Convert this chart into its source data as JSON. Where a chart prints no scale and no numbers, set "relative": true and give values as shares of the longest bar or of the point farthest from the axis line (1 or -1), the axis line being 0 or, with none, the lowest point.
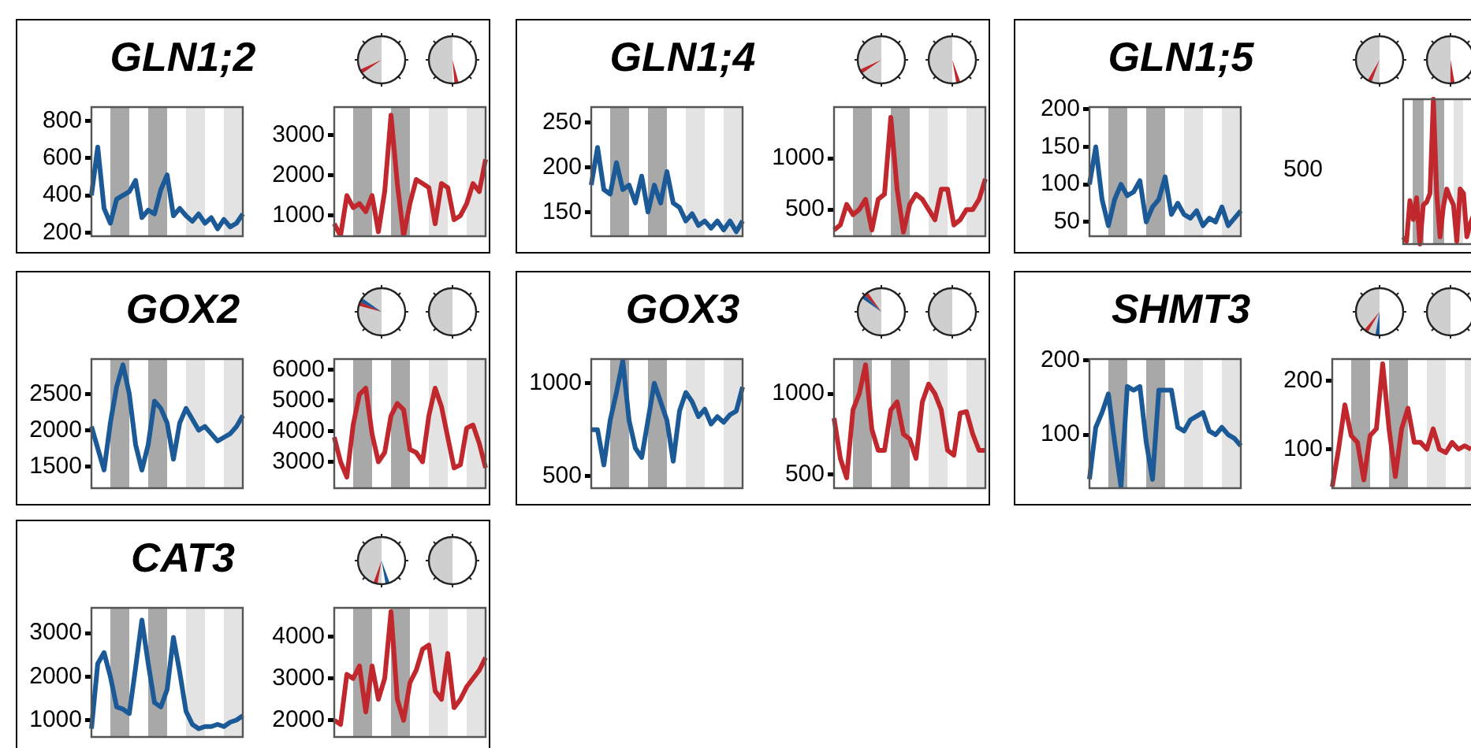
{
  "chart_data": [
    {
      "type": "line",
      "title": "GLN1;2",
      "categories": [
        null,
        null,
        null,
        null,
        null,
        null,
        null,
        null,
        null,
        null,
        null,
        null,
        null,
        null,
        null,
        null,
        null,
        null,
        null,
        null,
        null,
        null,
        null,
        null,
        null
      ],
      "ylim": [
        180,
        875
      ],
      "yticks": [
        200,
        400,
        600,
        800
      ],
      "tick_labels": "y",
      "series": [
        {
          "color": "#1b5a96",
          "values": [
            400,
            660,
            330,
            250,
            380,
            400,
            420,
            480,
            280,
            320,
            300,
            430,
            510,
            290,
            330,
            290,
            260,
            300,
            250,
            280,
            220,
            270,
            230,
            250,
            300
          ]
        }
      ]
    },
    {
      "type": "line",
      "categories": [
        null,
        null,
        null,
        null,
        null,
        null,
        null,
        null,
        null,
        null,
        null,
        null,
        null,
        null,
        null,
        null,
        null,
        null,
        null,
        null,
        null,
        null,
        null,
        null,
        null
      ],
      "ylim": [
        490,
        3700
      ],
      "yticks": [
        1000,
        2000,
        3000
      ],
      "tick_labels": "y",
      "series": [
        {
          "color": "#c0282d",
          "values": [
            800,
            500,
            1500,
            1200,
            1300,
            1100,
            1500,
            600,
            1600,
            3500,
            1800,
            500,
            1300,
            1900,
            1800,
            1700,
            800,
            1800,
            1700,
            900,
            1000,
            1300,
            1800,
            1600,
            2400
          ]
        }
      ]
    },
    {
      "type": "line",
      "title": "GLN1;4",
      "categories": [
        null,
        null,
        null,
        null,
        null,
        null,
        null,
        null,
        null,
        null,
        null,
        null,
        null,
        null,
        null,
        null,
        null,
        null,
        null,
        null,
        null,
        null,
        null,
        null,
        null
      ],
      "ylim": [
        123,
        267
      ],
      "yticks": [
        150,
        200,
        250
      ],
      "tick_labels": "y",
      "series": [
        {
          "color": "#1b5a96",
          "values": [
            180,
            222,
            175,
            170,
            205,
            175,
            180,
            160,
            190,
            150,
            180,
            160,
            195,
            160,
            155,
            140,
            148,
            135,
            140,
            132,
            140,
            130,
            140,
            128,
            140
          ]
        }
      ]
    },
    {
      "type": "line",
      "categories": [
        null,
        null,
        null,
        null,
        null,
        null,
        null,
        null,
        null,
        null,
        null,
        null,
        null,
        null,
        null,
        null,
        null,
        null,
        null,
        null,
        null,
        null,
        null,
        null,
        null
      ],
      "ylim": [
        240,
        1500
      ],
      "yticks": [
        500,
        1000
      ],
      "tick_labels": "y",
      "series": [
        {
          "color": "#c0282d",
          "values": [
            300,
            350,
            550,
            450,
            500,
            600,
            300,
            600,
            650,
            1400,
            700,
            280,
            550,
            650,
            600,
            500,
            400,
            700,
            700,
            350,
            400,
            500,
            500,
            600,
            800
          ]
        }
      ]
    },
    {
      "type": "line",
      "title": "GLN1;5",
      "categories": [
        null,
        null,
        null,
        null,
        null,
        null,
        null,
        null,
        null,
        null,
        null,
        null,
        null,
        null,
        null,
        null,
        null,
        null,
        null,
        null,
        null,
        null,
        null,
        null,
        null
      ],
      "ylim": [
        31,
        203
      ],
      "yticks": [
        50,
        100,
        150,
        200
      ],
      "tick_labels": "y",
      "series": [
        {
          "color": "#1b5a96",
          "values": [
            100,
            150,
            80,
            45,
            80,
            100,
            85,
            90,
            105,
            50,
            70,
            80,
            110,
            60,
            75,
            60,
            55,
            65,
            45,
            55,
            50,
            70,
            45,
            55,
            65
          ]
        }
      ]
    },
    {
      "type": "line",
      "categories": [
        null,
        null,
        null,
        null,
        null,
        null,
        null,
        null,
        null,
        null,
        null,
        null,
        null,
        null,
        null,
        null,
        null,
        null,
        null,
        null,
        null,
        null,
        null,
        null,
        null
      ],
      "relative": true,
      "tick_labels": "y",
      "annotations": [
        "500"
      ],
      "series": [
        {
          "color": "#c0282d",
          "values": [
            0.05,
            0.02,
            0.3,
            0.17,
            0.32,
            0,
            0.27,
            0.29,
            0.35,
            1,
            0.35,
            0.05,
            0.26,
            0.38,
            0.32,
            0.27,
            0.02,
            0.38,
            0.35,
            0.05,
            0.14,
            0.2,
            0.2,
            null,
            null
          ]
        }
      ]
    },
    {
      "type": "line",
      "title": "GOX2",
      "categories": [
        null,
        null,
        null,
        null,
        null,
        null,
        null,
        null,
        null,
        null,
        null,
        null,
        null,
        null,
        null,
        null,
        null,
        null,
        null,
        null,
        null,
        null,
        null,
        null,
        null
      ],
      "ylim": [
        1200,
        2980
      ],
      "yticks": [
        1500,
        2000,
        2500
      ],
      "tick_labels": "y",
      "series": [
        {
          "color": "#1b5a96",
          "values": [
            2050,
            1750,
            1450,
            2100,
            2600,
            2900,
            2500,
            1800,
            1450,
            1800,
            2400,
            2300,
            2100,
            1600,
            2100,
            2300,
            2150,
            2000,
            2050,
            1950,
            1850,
            1900,
            1950,
            2050,
            2200
          ]
        }
      ]
    },
    {
      "type": "line",
      "categories": [
        null,
        null,
        null,
        null,
        null,
        null,
        null,
        null,
        null,
        null,
        null,
        null,
        null,
        null,
        null,
        null,
        null,
        null,
        null,
        null,
        null,
        null,
        null,
        null,
        null
      ],
      "ylim": [
        2140,
        6350
      ],
      "yticks": [
        3000,
        4000,
        5000,
        6000
      ],
      "tick_labels": "y",
      "series": [
        {
          "color": "#c0282d",
          "values": [
            3800,
            3000,
            2500,
            4200,
            5200,
            5400,
            3900,
            3000,
            3300,
            4500,
            4900,
            4700,
            3400,
            3300,
            3000,
            4500,
            5400,
            4800,
            3800,
            2800,
            2900,
            4100,
            4200,
            3600,
            2800
          ]
        }
      ]
    },
    {
      "type": "line",
      "title": "GOX3",
      "categories": [
        null,
        null,
        null,
        null,
        null,
        null,
        null,
        null,
        null,
        null,
        null,
        null,
        null,
        null,
        null,
        null,
        null,
        null,
        null,
        null,
        null,
        null,
        null,
        null,
        null
      ],
      "ylim": [
        435,
        1130
      ],
      "yticks": [
        500,
        1000
      ],
      "tick_labels": "y",
      "series": [
        {
          "color": "#1b5a96",
          "values": [
            750,
            750,
            560,
            800,
            950,
            1120,
            800,
            650,
            600,
            800,
            1000,
            900,
            800,
            580,
            850,
            950,
            900,
            820,
            860,
            780,
            820,
            790,
            830,
            850,
            980
          ]
        }
      ]
    },
    {
      "type": "line",
      "categories": [
        null,
        null,
        null,
        null,
        null,
        null,
        null,
        null,
        null,
        null,
        null,
        null,
        null,
        null,
        null,
        null,
        null,
        null,
        null,
        null,
        null,
        null,
        null,
        null,
        null
      ],
      "ylim": [
        416,
        1215
      ],
      "yticks": [
        500,
        1000
      ],
      "tick_labels": "y",
      "series": [
        {
          "color": "#c0282d",
          "values": [
            850,
            600,
            480,
            900,
            1000,
            1180,
            780,
            650,
            650,
            900,
            950,
            750,
            720,
            600,
            950,
            1060,
            1000,
            900,
            650,
            620,
            880,
            890,
            750,
            650,
            650
          ]
        }
      ]
    },
    {
      "type": "line",
      "title": "SHMT3",
      "categories": [
        null,
        null,
        null,
        null,
        null,
        null,
        null,
        null,
        null,
        null,
        null,
        null,
        null,
        null,
        null,
        null,
        null,
        null,
        null,
        null,
        null,
        null,
        null,
        null,
        null
      ],
      "ylim": [
        28,
        202
      ],
      "yticks": [
        100,
        200
      ],
      "tick_labels": "y",
      "series": [
        {
          "color": "#1b5a96",
          "values": [
            40,
            110,
            130,
            155,
            90,
            30,
            165,
            160,
            165,
            90,
            40,
            160,
            160,
            160,
            110,
            105,
            120,
            125,
            130,
            105,
            100,
            110,
            100,
            95,
            85
          ]
        }
      ]
    },
    {
      "type": "line",
      "categories": [
        null,
        null,
        null,
        null,
        null,
        null,
        null,
        null,
        null,
        null,
        null,
        null,
        null,
        null,
        null,
        null,
        null,
        null,
        null,
        null,
        null,
        null,
        null,
        null,
        null
      ],
      "ylim": [
        43,
        232
      ],
      "yticks": [
        100,
        200
      ],
      "tick_labels": "y",
      "series": [
        {
          "color": "#c0282d",
          "values": [
            45,
            100,
            165,
            120,
            110,
            55,
            120,
            130,
            225,
            130,
            60,
            130,
            160,
            110,
            110,
            100,
            130,
            100,
            95,
            110,
            100,
            105,
            100,
            null,
            null
          ]
        }
      ]
    },
    {
      "type": "line",
      "title": "CAT3",
      "categories": [
        null,
        null,
        null,
        null,
        null,
        null,
        null,
        null,
        null,
        null,
        null,
        null,
        null,
        null,
        null,
        null,
        null,
        null,
        null,
        null,
        null,
        null,
        null,
        null,
        null
      ],
      "ylim": [
        610,
        3580
      ],
      "yticks": [
        1000,
        2000,
        3000
      ],
      "tick_labels": "y",
      "series": [
        {
          "color": "#1b5a96",
          "values": [
            800,
            2300,
            2550,
            2000,
            1300,
            1250,
            1150,
            2200,
            3300,
            2300,
            1400,
            1300,
            1700,
            2900,
            2100,
            1200,
            900,
            800,
            850,
            850,
            900,
            850,
            950,
            1000,
            1100
          ]
        }
      ]
    },
    {
      "type": "line",
      "categories": [
        null,
        null,
        null,
        null,
        null,
        null,
        null,
        null,
        null,
        null,
        null,
        null,
        null,
        null,
        null,
        null,
        null,
        null,
        null,
        null,
        null,
        null,
        null,
        null,
        null
      ],
      "ylim": [
        1600,
        4690
      ],
      "yticks": [
        2000,
        3000,
        4000
      ],
      "tick_labels": "y",
      "series": [
        {
          "color": "#c0282d",
          "values": [
            2000,
            1900,
            3100,
            3000,
            3300,
            2200,
            3300,
            2500,
            3000,
            4600,
            2500,
            2000,
            2900,
            3200,
            3700,
            3800,
            2700,
            2500,
            3600,
            2300,
            2500,
            2800,
            3000,
            3200,
            3500
          ]
        }
      ]
    }
  ]
}
